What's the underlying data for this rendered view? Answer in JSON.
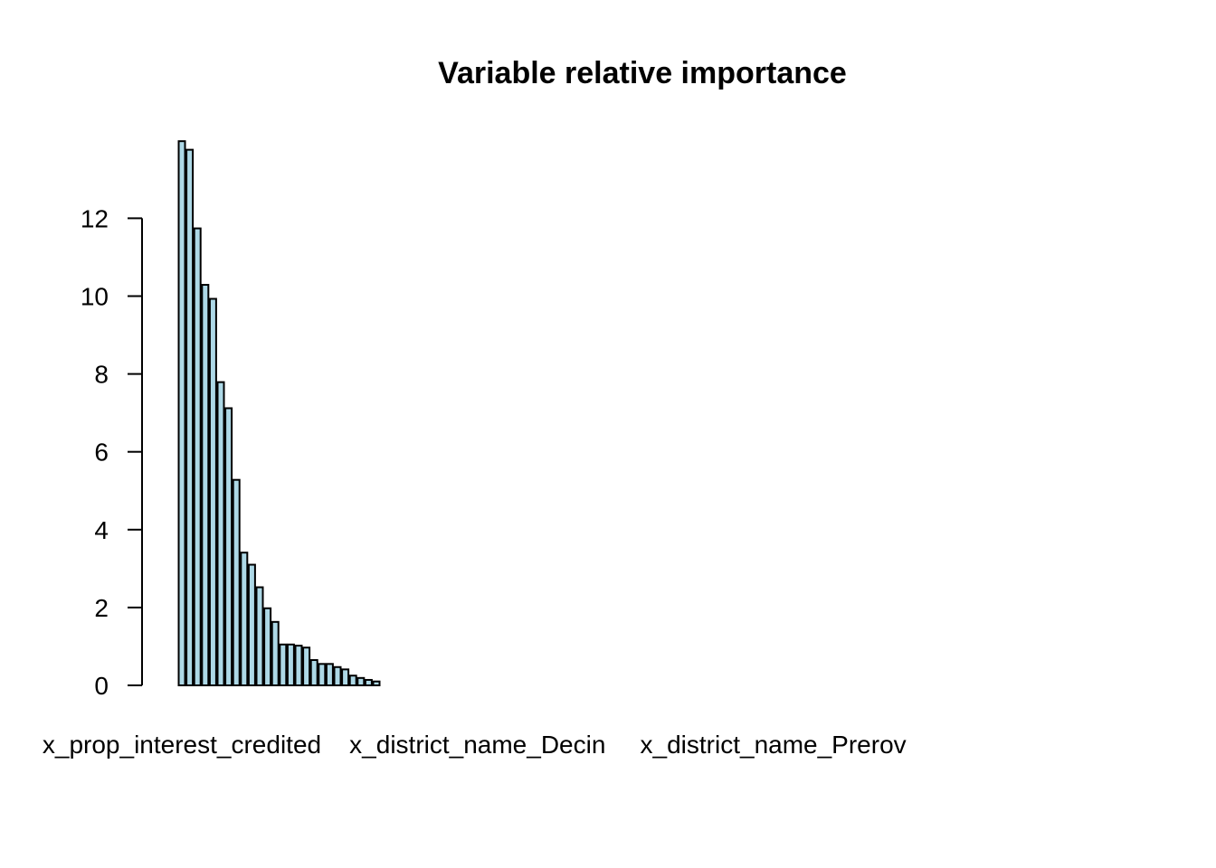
{
  "chart_data": {
    "type": "bar",
    "title": "Variable relative importance",
    "xlabel": "",
    "ylabel": "",
    "ylim": [
      0,
      14
    ],
    "yticks": [
      0,
      2,
      4,
      6,
      8,
      10,
      12
    ],
    "grid": false,
    "legend": "none",
    "bar_fill_color": "#add8e6",
    "bar_edge_color": "#000000",
    "visible_category_labels": [
      {
        "index": 0,
        "label": "x_prop_interest_credited"
      },
      {
        "index": 38,
        "label": "x_district_name_Decin"
      },
      {
        "index": 76,
        "label": "x_district_name_Prerov"
      }
    ],
    "values": [
      13.98,
      13.76,
      11.74,
      10.29,
      9.93,
      7.79,
      7.12,
      5.28,
      3.41,
      3.1,
      2.52,
      1.98,
      1.63,
      1.05,
      1.05,
      1.02,
      0.97,
      0.65,
      0.55,
      0.55,
      0.47,
      0.41,
      0.25,
      0.19,
      0.14,
      0.1,
      0,
      0,
      0,
      0,
      0,
      0,
      0,
      0,
      0,
      0,
      0,
      0,
      0,
      0,
      0,
      0,
      0,
      0,
      0,
      0,
      0,
      0,
      0,
      0,
      0,
      0,
      0,
      0,
      0,
      0,
      0,
      0,
      0,
      0,
      0,
      0,
      0,
      0,
      0,
      0,
      0,
      0,
      0,
      0,
      0,
      0,
      0,
      0,
      0,
      0,
      0,
      0,
      0,
      0,
      0,
      0,
      0,
      0,
      0,
      0,
      0,
      0,
      0,
      0,
      0,
      0,
      0,
      0,
      0,
      0,
      0,
      0,
      0,
      0,
      0,
      0,
      0,
      0,
      0,
      0,
      0,
      0,
      0,
      0,
      0,
      0,
      0,
      0,
      0
    ]
  }
}
